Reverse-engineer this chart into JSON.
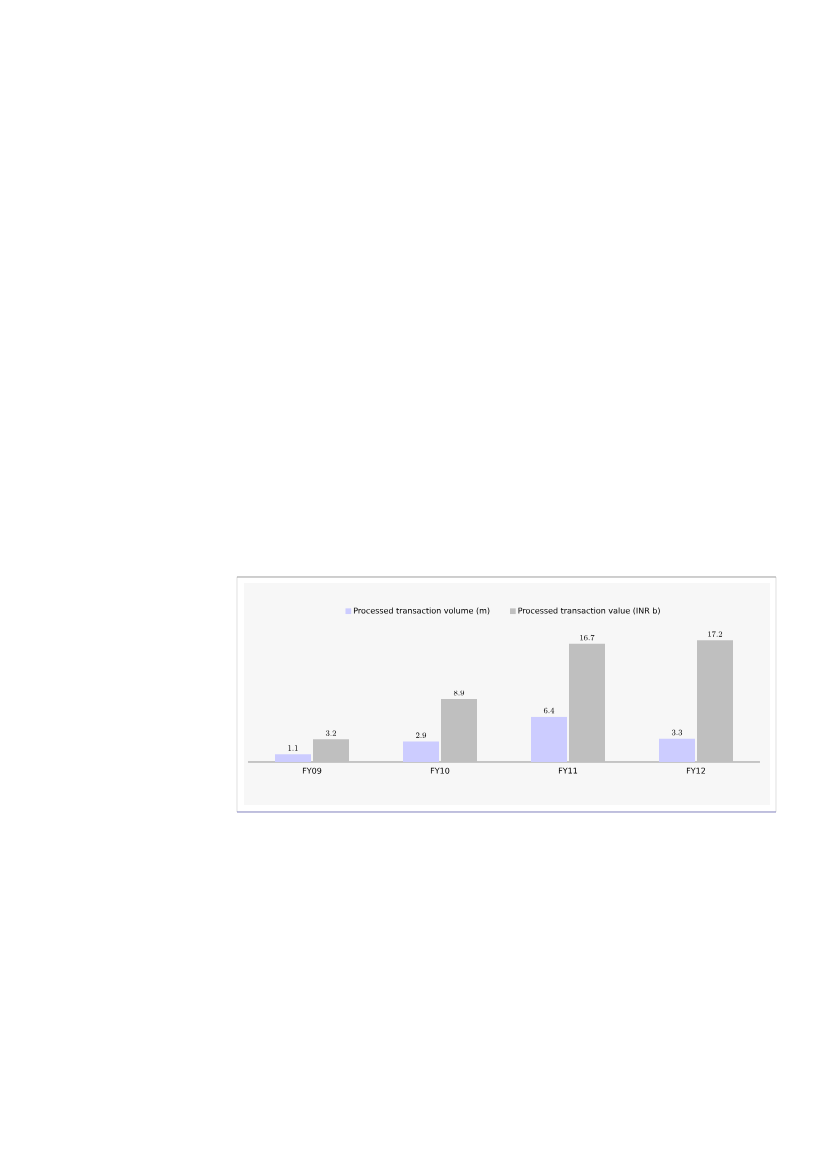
{
  "chart_data": {
    "type": "bar",
    "categories": [
      "FY09",
      "FY10",
      "FY11",
      "FY12"
    ],
    "series": [
      {
        "name": "Processed transaction volume (m)",
        "color": "#ccccff",
        "values": [
          1.1,
          2.9,
          6.4,
          3.3
        ]
      },
      {
        "name": "Processed transaction value (INR b)",
        "color": "#bfbfbf",
        "values": [
          3.2,
          8.9,
          16.7,
          17.2
        ]
      }
    ],
    "data_labels": true,
    "legend": "top"
  }
}
